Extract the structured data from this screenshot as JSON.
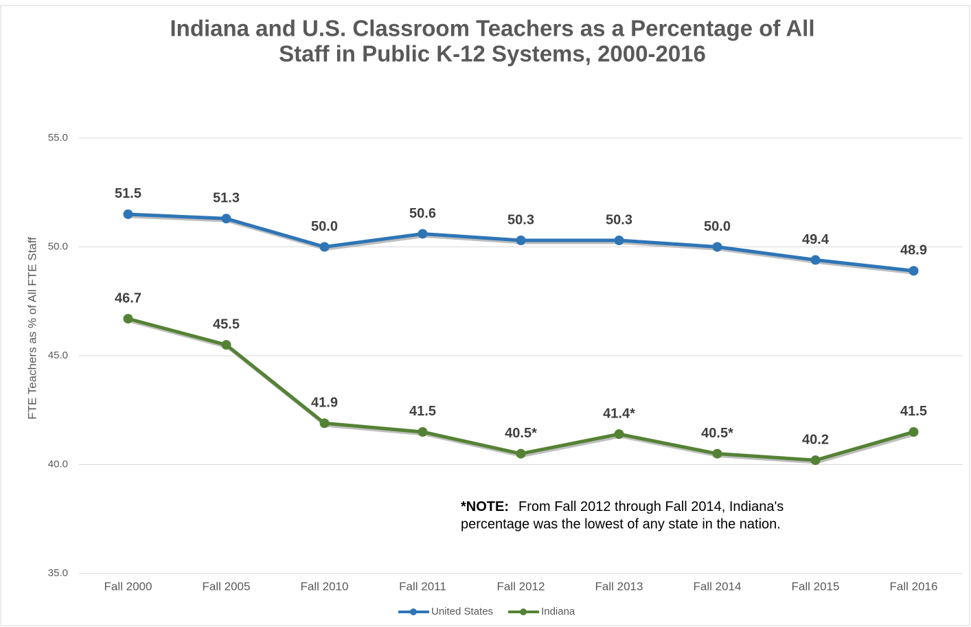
{
  "chart_data": {
    "type": "line",
    "title": [
      "Indiana and U.S. Classroom Teachers as a Percentage of All",
      "Staff in Public K-12 Systems, 2000-2016"
    ],
    "y_label": "FTE Teachers as % of All FTE Staff",
    "categories": [
      "Fall 2000",
      "Fall 2005",
      "Fall 2010",
      "Fall 2011",
      "Fall 2012",
      "Fall 2013",
      "Fall 2014",
      "Fall 2015",
      "Fall 2016"
    ],
    "series": [
      {
        "name": "United States",
        "color": "#2e75b6",
        "values": [
          51.5,
          51.3,
          50.0,
          50.6,
          50.3,
          50.3,
          50.0,
          49.4,
          48.9
        ],
        "value_labels": [
          "51.5",
          "51.3",
          "50.0",
          "50.6",
          "50.3",
          "50.3",
          "50.0",
          "49.4",
          "48.9"
        ]
      },
      {
        "name": "Indiana",
        "color": "#548235",
        "values": [
          46.7,
          45.5,
          41.9,
          41.5,
          40.5,
          41.4,
          40.5,
          40.2,
          41.5
        ],
        "value_labels": [
          "46.7",
          "45.5",
          "41.9",
          "41.5",
          "40.5*",
          "41.4*",
          "40.5*",
          "40.2",
          "41.5"
        ]
      }
    ],
    "ylim": [
      35,
      55
    ],
    "yticks": [
      {
        "value": 35,
        "label": "35.0"
      },
      {
        "value": 40,
        "label": "40.0"
      },
      {
        "value": 45,
        "label": "45.0"
      },
      {
        "value": 50,
        "label": "50.0"
      },
      {
        "value": 55,
        "label": "55.0"
      }
    ],
    "grid": true,
    "legend": "bottom",
    "note": {
      "label": "*NOTE:",
      "lines": [
        "From Fall 2012 through Fall 2014, Indiana's",
        "percentage was the lowest of any state in the nation."
      ]
    }
  }
}
